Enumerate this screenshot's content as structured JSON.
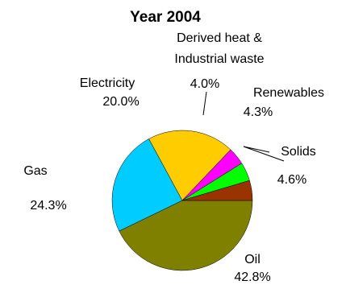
{
  "chart_data": {
    "type": "pie",
    "title": "Year 2004",
    "start_angle_deg": 0,
    "direction": "clockwise",
    "slices": [
      {
        "label_lines": [
          "Oil"
        ],
        "value": 42.8,
        "value_label": "42.8%",
        "color": "#808000"
      },
      {
        "label_lines": [
          "Gas"
        ],
        "value": 24.3,
        "value_label": "24.3%",
        "color": "#00CCFF"
      },
      {
        "label_lines": [
          "Electricity"
        ],
        "value": 20.0,
        "value_label": "20.0%",
        "color": "#FFCC00"
      },
      {
        "label_lines": [
          "Derived heat &",
          "Industrial waste"
        ],
        "value": 4.0,
        "value_label": "4.0%",
        "color": "#FF00FF"
      },
      {
        "label_lines": [
          "Renewables"
        ],
        "value": 4.3,
        "value_label": "4.3%",
        "color": "#00FF00"
      },
      {
        "label_lines": [
          "Solids"
        ],
        "value": 4.6,
        "value_label": "4.6%",
        "color": "#993300"
      }
    ]
  }
}
